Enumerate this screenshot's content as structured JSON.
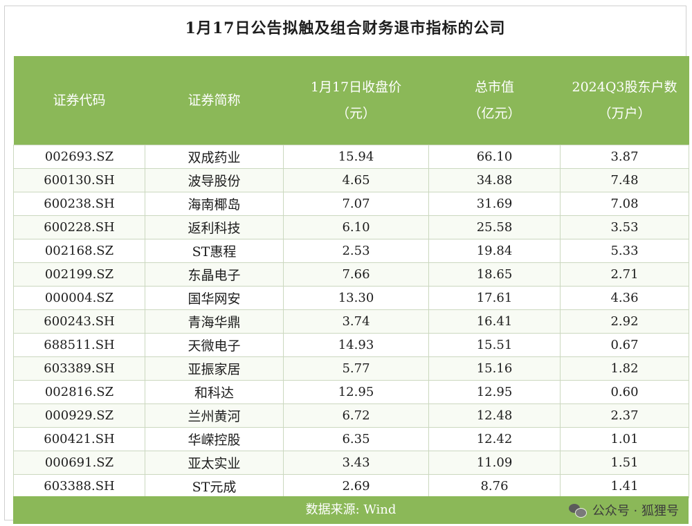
{
  "title": "1月17日公告拟触及组合财务退市指标的公司",
  "headers": [
    [
      "证券代码"
    ],
    [
      "证券简称"
    ],
    [
      "1月17日收盘价",
      "（元）"
    ],
    [
      "总市值",
      "（亿元）"
    ],
    [
      "2024Q3股东户数",
      "（万户）"
    ]
  ],
  "rows": [
    [
      "002693.SZ",
      "双成药业",
      "15.94",
      "66.10",
      "3.87"
    ],
    [
      "600130.SH",
      "波导股份",
      "4.65",
      "34.88",
      "7.48"
    ],
    [
      "600238.SH",
      "海南椰岛",
      "7.07",
      "31.69",
      "7.08"
    ],
    [
      "600228.SH",
      "返利科技",
      "6.10",
      "25.58",
      "3.53"
    ],
    [
      "002168.SZ",
      "ST惠程",
      "2.53",
      "19.84",
      "5.33"
    ],
    [
      "002199.SZ",
      "东晶电子",
      "7.66",
      "18.65",
      "2.71"
    ],
    [
      "000004.SZ",
      "国华网安",
      "13.30",
      "17.61",
      "4.36"
    ],
    [
      "600243.SH",
      "青海华鼎",
      "3.74",
      "16.41",
      "2.92"
    ],
    [
      "688511.SH",
      "天微电子",
      "14.93",
      "15.51",
      "0.67"
    ],
    [
      "603389.SH",
      "亚振家居",
      "5.77",
      "15.16",
      "1.82"
    ],
    [
      "002816.SZ",
      "和科达",
      "12.95",
      "12.95",
      "0.60"
    ],
    [
      "000929.SZ",
      "兰州黄河",
      "6.72",
      "12.48",
      "2.37"
    ],
    [
      "600421.SH",
      "华嵘控股",
      "6.35",
      "12.42",
      "1.01"
    ],
    [
      "000691.SZ",
      "亚太实业",
      "3.43",
      "11.09",
      "1.51"
    ],
    [
      "603388.SH",
      "ST元成",
      "2.69",
      "8.76",
      "1.41"
    ]
  ],
  "source": "数据来源: Wind",
  "watermark": {
    "icon": "wechat-icon",
    "text": "公众号 · 狐狸号"
  },
  "colors": {
    "header_green": "#8bb858",
    "grid_line": "#cbd8bf"
  }
}
